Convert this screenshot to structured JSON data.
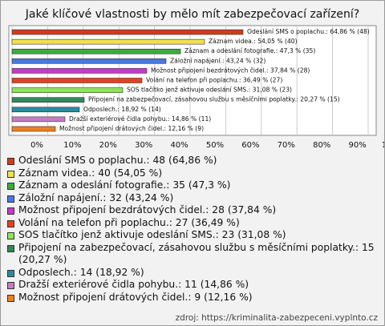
{
  "chart_data": {
    "type": "bar",
    "orientation": "horizontal",
    "title": "Jaké klíčové vlastnosti by mělo mít zabezpečovací zařízení?",
    "values": [
      64.86,
      54.05,
      47.3,
      43.24,
      37.84,
      36.49,
      31.08,
      20.27,
      18.92,
      14.86,
      12.16
    ],
    "value_labels": [
      "Odeslání SMS o poplachu.: 64,86 % (48)",
      "Záznam videa.: 54,05 % (40)",
      "Záznam a odeslání fotografie.: 47,3 % (35)",
      "Záložní napájení.: 43,24 % (32)",
      "Možnost připojení bezdrátových čidel.: 37,84 % (28)",
      "Volání na telefon při poplachu.: 36,49 % (27)",
      "SOS tlačítko jenž aktivuje odeslání SMS.: 31,08 % (23)",
      "Připojení na zabezpečovací, zásahovou službu s měsíčními poplatky.: 20,27 % (15)",
      "Odposlech.: 18,92 % (14)",
      "Dražší exteriérové čidla pohybu.: 14,86 % (11)",
      "Možnost připojení drátových čidel.: 12,16 % (9)"
    ],
    "legend_labels": [
      "Odeslání SMS o poplachu.: 48 (64,86 %)",
      "Záznam videa.: 40 (54,05 %)",
      "Záznam a odeslání fotografie.: 35 (47,3 %)",
      "Záložní napájení.: 32 (43,24 %)",
      "Možnost připojení bezdrátových čidel.: 28 (37,84 %)",
      "Volání na telefon při poplachu.: 27 (36,49 %)",
      "SOS tlačítko jenž aktivuje odeslání SMS.: 23 (31,08 %)",
      "Připojení na zabezpečovací, zásahovou službu s měsíčními poplatky.: 15 (20,27 %)",
      "Odposlech.: 14 (18,92 %)",
      "Dražší exteriérové čidla pohybu.: 11 (14,86 %)",
      "Možnost připojení drátových čidel.: 9 (12,16 %)"
    ],
    "colors": [
      "#d23a1c",
      "#f2e24a",
      "#3aad3a",
      "#4a78e0",
      "#c43cc4",
      "#e4421e",
      "#8fe35a",
      "#2e8b57",
      "#2a8aa0",
      "#c47ec4",
      "#ef7f1a"
    ],
    "xlim": [
      0,
      100
    ],
    "xticks": [
      {
        "value": 0,
        "label": "0%"
      },
      {
        "value": 10,
        "label": "10%"
      },
      {
        "value": 20,
        "label": "20%"
      },
      {
        "value": 30,
        "label": "30%"
      },
      {
        "value": 40,
        "label": "40%"
      },
      {
        "value": 50,
        "label": "50%"
      },
      {
        "value": 60,
        "label": "60%"
      },
      {
        "value": 70,
        "label": "70%"
      },
      {
        "value": 80,
        "label": "80%"
      },
      {
        "value": 90,
        "label": "90%"
      },
      {
        "value": 100,
        "label": "100%"
      }
    ],
    "grid": true,
    "source": "zdroj: https://kriminalita-zabezpeceni.vyplnto.cz"
  }
}
